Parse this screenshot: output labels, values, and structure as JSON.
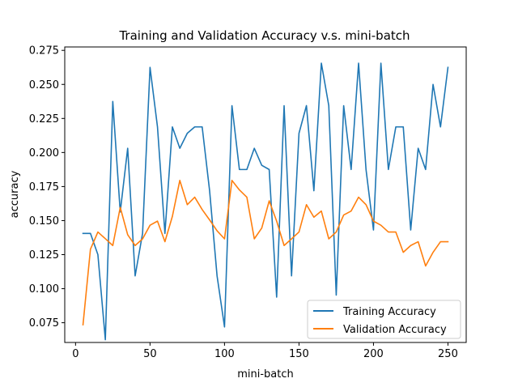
{
  "chart_data": {
    "type": "line",
    "title": "Training and Validation Accuracy v.s. mini-batch",
    "xlabel": "mini-batch",
    "ylabel": "accuracy",
    "xlim": [
      -7.25,
      262.25
    ],
    "ylim": [
      0.0605,
      0.2775
    ],
    "xticks": [
      0,
      50,
      100,
      150,
      200,
      250
    ],
    "yticks": [
      0.075,
      0.1,
      0.125,
      0.15,
      0.175,
      0.2,
      0.225,
      0.25,
      0.275
    ],
    "ytick_labels": [
      "0.075",
      "0.100",
      "0.125",
      "0.150",
      "0.175",
      "0.200",
      "0.225",
      "0.250",
      "0.275"
    ],
    "grid": false,
    "legend": {
      "placement": "lower-right"
    },
    "x": [
      5,
      10,
      15,
      20,
      25,
      30,
      35,
      40,
      45,
      50,
      55,
      60,
      65,
      70,
      75,
      80,
      85,
      90,
      95,
      100,
      105,
      110,
      115,
      120,
      125,
      130,
      135,
      140,
      145,
      150,
      155,
      160,
      165,
      170,
      175,
      180,
      185,
      190,
      195,
      200,
      205,
      210,
      215,
      220,
      225,
      230,
      235,
      240,
      245,
      250
    ],
    "series": [
      {
        "name": "Training Accuracy",
        "color": "#1f77b4",
        "values": [
          0.1406,
          0.1406,
          0.125,
          0.0625,
          0.2375,
          0.1563,
          0.2031,
          0.1094,
          0.1406,
          0.2625,
          0.2188,
          0.1406,
          0.2188,
          0.2031,
          0.2141,
          0.2188,
          0.2188,
          0.1719,
          0.1094,
          0.0719,
          0.2344,
          0.1875,
          0.1875,
          0.2031,
          0.1906,
          0.1875,
          0.0938,
          0.2344,
          0.1094,
          0.2141,
          0.2344,
          0.1719,
          0.2656,
          0.2344,
          0.0953,
          0.2344,
          0.1875,
          0.2656,
          0.1875,
          0.1431,
          0.2656,
          0.1875,
          0.2188,
          0.2188,
          0.1431,
          0.2031,
          0.1875,
          0.25,
          0.2188,
          0.2625
        ]
      },
      {
        "name": "Validation Accuracy",
        "color": "#ff7f0e",
        "values": [
          0.0735,
          0.129,
          0.1416,
          0.1367,
          0.1317,
          0.1597,
          0.1396,
          0.1317,
          0.1366,
          0.1466,
          0.1496,
          0.1345,
          0.1531,
          0.1795,
          0.1617,
          0.1672,
          0.1581,
          0.1505,
          0.1425,
          0.1366,
          0.1795,
          0.1725,
          0.1672,
          0.1366,
          0.1445,
          0.1645,
          0.1496,
          0.1317,
          0.1366,
          0.1416,
          0.1617,
          0.1525,
          0.157,
          0.1366,
          0.1416,
          0.1541,
          0.157,
          0.1672,
          0.1617,
          0.1496,
          0.1466,
          0.1416,
          0.1416,
          0.1267,
          0.1317,
          0.1345,
          0.1167,
          0.1267,
          0.1345,
          0.1345
        ]
      }
    ]
  }
}
